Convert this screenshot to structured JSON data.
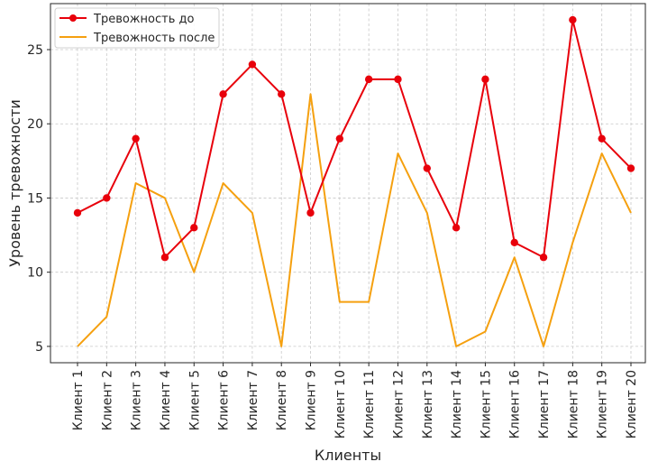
{
  "chart_data": {
    "type": "line",
    "categories": [
      "Клиент 1",
      "Клиент 2",
      "Клиент 3",
      "Клиент 4",
      "Клиент 5",
      "Клиент 6",
      "Клиент 7",
      "Клиент 8",
      "Клиент 9",
      "Клиент 10",
      "Клиент 11",
      "Клиент 12",
      "Клиент 13",
      "Клиент 14",
      "Клиент 15",
      "Клиент 16",
      "Клиент 17",
      "Клиент 18",
      "Клиент 19",
      "Клиент 20"
    ],
    "series": [
      {
        "name": "Тревожность до",
        "color": "#e8000b",
        "marker": "circle",
        "values": [
          14,
          15,
          19,
          11,
          13,
          22,
          24,
          22,
          14,
          19,
          23,
          23,
          17,
          13,
          23,
          12,
          11,
          27,
          19,
          17
        ]
      },
      {
        "name": "Тревожность после",
        "color": "#f5a00f",
        "marker": "none",
        "values": [
          5,
          7,
          16,
          15,
          10,
          16,
          14,
          5,
          22,
          8,
          8,
          18,
          14,
          5,
          6,
          11,
          5,
          12,
          18,
          14
        ]
      }
    ],
    "title": "",
    "xlabel": "Клиенты",
    "ylabel": "Уровень тревожности",
    "yticks": [
      5,
      10,
      15,
      20,
      25
    ],
    "ylim": [
      3.9,
      28.1
    ],
    "grid": true,
    "legend": "top-left"
  }
}
